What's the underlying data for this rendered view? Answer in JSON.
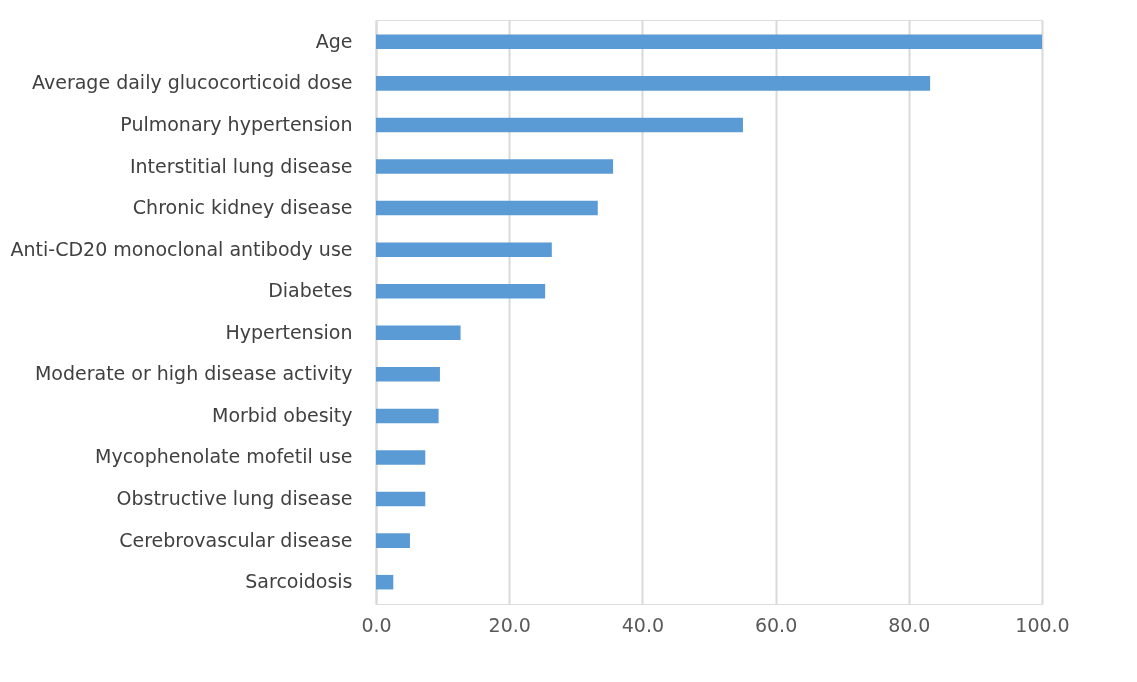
{
  "chart_data": {
    "type": "bar",
    "orientation": "horizontal",
    "categories": [
      "Age",
      "Average daily glucocorticoid dose",
      "Pulmonary hypertension",
      "Interstitial lung disease",
      "Chronic kidney disease",
      "Anti-CD20 monoclonal antibody use",
      "Diabetes",
      "Hypertension",
      "Moderate or high disease activity",
      "Morbid obesity",
      "Mycophenolate mofetil use",
      "Obstructive lung disease",
      "Cerebrovascular disease",
      "Sarcoidosis"
    ],
    "values": [
      100,
      83.2,
      55.1,
      35.6,
      33.3,
      26.4,
      25.4,
      12.7,
      9.6,
      9.4,
      7.4,
      7.4,
      5.1,
      2.6
    ],
    "color": "#5b9bd5",
    "xlim": [
      0,
      100
    ],
    "xticks": [
      {
        "value": 0,
        "label": "0.0"
      },
      {
        "value": 20,
        "label": "20.0"
      },
      {
        "value": 40,
        "label": "40.0"
      },
      {
        "value": 60,
        "label": "60.0"
      },
      {
        "value": 80,
        "label": "80.0"
      },
      {
        "value": 100,
        "label": "100.0"
      }
    ],
    "grid": "x"
  }
}
